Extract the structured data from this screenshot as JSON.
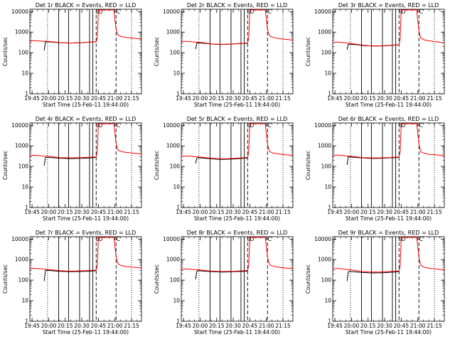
{
  "chart_data": {
    "type": "line",
    "layout": "3x3 grid",
    "xlabel": "Start Time (25-Feb-11 19:44:00)",
    "ylabel": "Counts/sec",
    "y_scale": "log",
    "ylim": [
      1,
      13000
    ],
    "y_ticks": [
      1,
      10,
      100,
      1000,
      10000
    ],
    "y_tick_labels": [
      "1",
      "10",
      "100",
      "1000",
      "10000"
    ],
    "xlim_minutes": [
      1183,
      1284
    ],
    "x_ticks_minutes": [
      1185,
      1200,
      1215,
      1230,
      1245,
      1260,
      1275
    ],
    "x_tick_labels": [
      "19:45",
      "20:00",
      "20:15",
      "20:30",
      "20:45",
      "21:00",
      "21:15"
    ],
    "series_colors": {
      "events": "#000000",
      "lld": "#ff0000"
    },
    "vertical_markers": [
      {
        "style": "dotted",
        "x": 1199
      },
      {
        "style": "solid",
        "x": 1209
      },
      {
        "style": "solid",
        "x": 1218
      },
      {
        "style": "solid",
        "x": 1228
      },
      {
        "style": "solid",
        "x": 1237
      },
      {
        "style": "solid",
        "x": 1240
      },
      {
        "style": "dashed",
        "x": 1243
      },
      {
        "style": "dashed",
        "x": 1261
      },
      {
        "style": "dotted",
        "x": 1275
      }
    ],
    "marker_labels": [
      {
        "x": 1244,
        "text": "S"
      },
      {
        "x": 1247,
        "text": "D"
      },
      {
        "x": 1263,
        "text": "C"
      }
    ],
    "panels": [
      {
        "title": "Det 1r BLACK = Events, RED = LLD",
        "events": {
          "x": [
            1196,
            1197,
            1198,
            1202,
            1206,
            1210,
            1215,
            1220,
            1225,
            1230,
            1235,
            1240,
            1243
          ],
          "y": [
            130,
            320,
            340,
            330,
            320,
            305,
            300,
            295,
            300,
            305,
            320,
            335,
            345
          ]
        },
        "lld": {
          "x": [
            1183,
            1186,
            1190,
            1194,
            1198,
            1202,
            1206,
            1210,
            1215,
            1220,
            1225,
            1230,
            1235,
            1240,
            1243,
            1244,
            1245,
            1247,
            1249,
            1253,
            1257,
            1259,
            1260,
            1261,
            1262,
            1263,
            1266,
            1270,
            1275,
            1280,
            1284
          ],
          "y": [
            350,
            390,
            380,
            360,
            365,
            345,
            330,
            310,
            300,
            295,
            300,
            305,
            320,
            330,
            340,
            500,
            12000,
            12000,
            12000,
            12000,
            12000,
            12000,
            4000,
            1500,
            900,
            700,
            600,
            550,
            520,
            480,
            460
          ]
        }
      },
      {
        "title": "Det 2r BLACK = Events, RED = LLD",
        "events": {
          "x": [
            1196,
            1197,
            1198,
            1202,
            1206,
            1210,
            1215,
            1220,
            1225,
            1230,
            1235,
            1240,
            1243
          ],
          "y": [
            150,
            290,
            300,
            290,
            280,
            265,
            255,
            250,
            255,
            265,
            275,
            285,
            290
          ]
        },
        "lld": {
          "x": [
            1183,
            1186,
            1190,
            1194,
            1198,
            1202,
            1206,
            1210,
            1215,
            1220,
            1225,
            1230,
            1235,
            1240,
            1243,
            1244,
            1245,
            1247,
            1249,
            1253,
            1257,
            1259,
            1260,
            1261,
            1262,
            1263,
            1266,
            1270,
            1275,
            1280,
            1284
          ],
          "y": [
            330,
            360,
            350,
            330,
            320,
            310,
            290,
            270,
            260,
            255,
            260,
            270,
            280,
            290,
            300,
            500,
            12000,
            12000,
            12000,
            12000,
            12000,
            12000,
            4000,
            1400,
            850,
            650,
            550,
            500,
            460,
            430,
            410
          ]
        }
      },
      {
        "title": "Det 3r BLACK = Events, RED = LLD",
        "events": {
          "x": [
            1196,
            1197,
            1198,
            1202,
            1206,
            1210,
            1215,
            1220,
            1225,
            1230,
            1235,
            1240,
            1243
          ],
          "y": [
            140,
            250,
            260,
            250,
            240,
            225,
            215,
            210,
            210,
            215,
            225,
            235,
            245
          ]
        },
        "lld": {
          "x": [
            1183,
            1186,
            1190,
            1194,
            1198,
            1202,
            1206,
            1210,
            1215,
            1220,
            1225,
            1230,
            1235,
            1240,
            1243,
            1244,
            1245,
            1247,
            1249,
            1253,
            1257,
            1259,
            1260,
            1261,
            1262,
            1263,
            1266,
            1270,
            1275,
            1280,
            1284
          ],
          "y": [
            300,
            330,
            320,
            300,
            290,
            270,
            250,
            235,
            220,
            215,
            215,
            220,
            230,
            240,
            250,
            450,
            12000,
            12000,
            12000,
            12000,
            12000,
            12000,
            3500,
            1200,
            650,
            500,
            420,
            380,
            350,
            320,
            300
          ]
        }
      },
      {
        "title": "Det 4r BLACK = Events, RED = LLD",
        "events": {
          "x": [
            1196,
            1197,
            1198,
            1202,
            1206,
            1210,
            1215,
            1220,
            1225,
            1230,
            1235,
            1240,
            1243
          ],
          "y": [
            110,
            260,
            280,
            270,
            260,
            250,
            245,
            240,
            245,
            250,
            255,
            265,
            275
          ]
        },
        "lld": {
          "x": [
            1183,
            1186,
            1190,
            1194,
            1198,
            1202,
            1206,
            1210,
            1215,
            1220,
            1225,
            1230,
            1235,
            1240,
            1243,
            1244,
            1245,
            1247,
            1249,
            1253,
            1257,
            1259,
            1260,
            1261,
            1262,
            1263,
            1266,
            1270,
            1275,
            1280,
            1284
          ],
          "y": [
            320,
            350,
            340,
            320,
            310,
            300,
            285,
            270,
            265,
            260,
            262,
            268,
            275,
            285,
            290,
            500,
            12000,
            12000,
            12000,
            12000,
            12000,
            12000,
            4000,
            1400,
            800,
            600,
            520,
            480,
            450,
            420,
            400
          ]
        }
      },
      {
        "title": "Det 5r BLACK = Events, RED = LLD",
        "events": {
          "x": [
            1196,
            1197,
            1198,
            1202,
            1206,
            1210,
            1215,
            1220,
            1225,
            1230,
            1235,
            1240,
            1243
          ],
          "y": [
            140,
            250,
            265,
            255,
            245,
            235,
            225,
            220,
            225,
            230,
            240,
            250,
            260
          ]
        },
        "lld": {
          "x": [
            1183,
            1186,
            1190,
            1194,
            1198,
            1202,
            1206,
            1210,
            1215,
            1220,
            1225,
            1230,
            1235,
            1240,
            1243,
            1244,
            1245,
            1247,
            1249,
            1253,
            1257,
            1259,
            1260,
            1261,
            1262,
            1263,
            1266,
            1270,
            1275,
            1280,
            1284
          ],
          "y": [
            300,
            320,
            315,
            300,
            290,
            280,
            265,
            250,
            240,
            235,
            238,
            245,
            255,
            265,
            275,
            480,
            12000,
            12000,
            12000,
            12000,
            12000,
            12000,
            3800,
            1300,
            700,
            520,
            450,
            410,
            380,
            360,
            340
          ]
        }
      },
      {
        "title": "Det 6r BLACK = Events, RED = LLD",
        "events": {
          "x": [
            1196,
            1197,
            1198,
            1202,
            1206,
            1210,
            1215,
            1220,
            1225,
            1230,
            1235,
            1240,
            1243
          ],
          "y": [
            120,
            300,
            290,
            280,
            270,
            260,
            250,
            245,
            248,
            255,
            262,
            270,
            280
          ]
        },
        "lld": {
          "x": [
            1183,
            1186,
            1190,
            1194,
            1198,
            1202,
            1206,
            1210,
            1215,
            1220,
            1225,
            1230,
            1235,
            1240,
            1243,
            1244,
            1245,
            1247,
            1249,
            1253,
            1257,
            1259,
            1260,
            1261,
            1262,
            1263,
            1266,
            1270,
            1275,
            1280,
            1284
          ],
          "y": [
            330,
            360,
            350,
            330,
            315,
            300,
            285,
            270,
            262,
            258,
            260,
            265,
            272,
            282,
            290,
            500,
            12000,
            12000,
            12000,
            12000,
            12000,
            12000,
            4000,
            1300,
            700,
            500,
            430,
            390,
            370,
            350,
            330
          ]
        }
      },
      {
        "title": "Det 7r BLACK = Events, RED = LLD",
        "events": {
          "x": [
            1196,
            1197,
            1198,
            1202,
            1206,
            1210,
            1215,
            1220,
            1225,
            1230,
            1235,
            1240,
            1243
          ],
          "y": [
            90,
            290,
            300,
            290,
            280,
            270,
            262,
            258,
            260,
            265,
            272,
            280,
            290
          ]
        },
        "lld": {
          "x": [
            1183,
            1186,
            1190,
            1194,
            1198,
            1202,
            1206,
            1210,
            1215,
            1220,
            1225,
            1230,
            1235,
            1240,
            1243,
            1244,
            1245,
            1247,
            1249,
            1253,
            1257,
            1259,
            1260,
            1261,
            1262,
            1263,
            1266,
            1270,
            1275,
            1280,
            1284
          ],
          "y": [
            340,
            380,
            370,
            350,
            335,
            320,
            305,
            290,
            280,
            275,
            278,
            285,
            292,
            300,
            310,
            520,
            12000,
            12000,
            12000,
            12000,
            12000,
            12000,
            4200,
            1500,
            850,
            600,
            500,
            460,
            430,
            410,
            390
          ]
        }
      },
      {
        "title": "Det 8r BLACK = Events, RED = LLD",
        "events": {
          "x": [
            1196,
            1197,
            1198,
            1202,
            1206,
            1210,
            1215,
            1220,
            1225,
            1230,
            1235,
            1240,
            1243
          ],
          "y": [
            110,
            270,
            290,
            280,
            270,
            260,
            252,
            248,
            250,
            256,
            262,
            270,
            280
          ]
        },
        "lld": {
          "x": [
            1183,
            1186,
            1190,
            1194,
            1198,
            1202,
            1206,
            1210,
            1215,
            1220,
            1225,
            1230,
            1235,
            1240,
            1243,
            1244,
            1245,
            1247,
            1249,
            1253,
            1257,
            1259,
            1260,
            1261,
            1262,
            1263,
            1266,
            1270,
            1275,
            1280,
            1284
          ],
          "y": [
            320,
            350,
            345,
            330,
            318,
            305,
            290,
            275,
            268,
            262,
            265,
            270,
            278,
            288,
            298,
            500,
            12000,
            12000,
            12000,
            12000,
            12000,
            12000,
            4000,
            1400,
            800,
            560,
            470,
            430,
            400,
            380,
            360
          ]
        }
      },
      {
        "title": "Det 9r BLACK = Events, RED = LLD",
        "events": {
          "x": [
            1196,
            1197,
            1198,
            1202,
            1206,
            1210,
            1215,
            1220,
            1225,
            1230,
            1235,
            1240,
            1243
          ],
          "y": [
            90,
            250,
            265,
            255,
            245,
            235,
            228,
            224,
            226,
            232,
            240,
            250,
            262
          ]
        },
        "lld": {
          "x": [
            1183,
            1186,
            1190,
            1194,
            1198,
            1202,
            1206,
            1210,
            1215,
            1220,
            1225,
            1230,
            1235,
            1240,
            1243,
            1244,
            1245,
            1247,
            1249,
            1253,
            1257,
            1259,
            1260,
            1261,
            1262,
            1263,
            1266,
            1270,
            1275,
            1280,
            1284
          ],
          "y": [
            330,
            370,
            360,
            340,
            320,
            300,
            280,
            262,
            252,
            246,
            248,
            254,
            262,
            272,
            282,
            480,
            12000,
            12000,
            12000,
            12000,
            12000,
            12000,
            3900,
            1300,
            700,
            500,
            420,
            380,
            355,
            335,
            315
          ]
        }
      }
    ]
  }
}
